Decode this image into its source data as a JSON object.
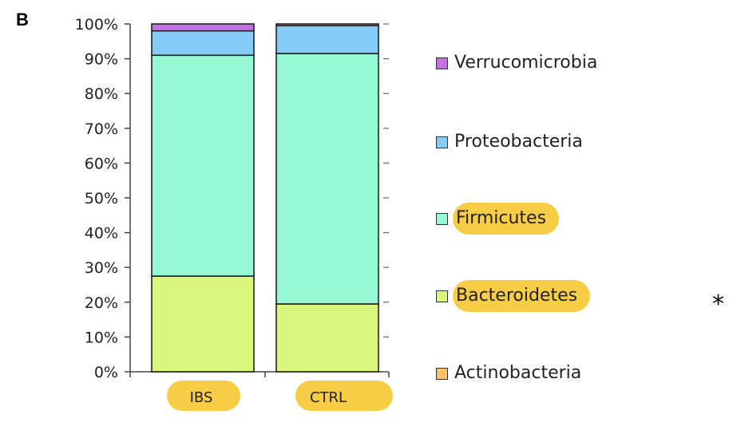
{
  "panel_label": "B",
  "annotation_mark": "*",
  "chart_data": {
    "type": "bar",
    "stacked": true,
    "categories": [
      "IBS",
      "CTRL"
    ],
    "highlighted_categories": [
      "IBS",
      "CTRL"
    ],
    "series": [
      {
        "name": "Actinobacteria",
        "values": [
          0,
          0
        ],
        "color": "#f7c46d"
      },
      {
        "name": "Bacteroidetes",
        "values": [
          27.5,
          19.5
        ],
        "color": "#d9f77c"
      },
      {
        "name": "Firmicutes",
        "values": [
          63.5,
          72.0
        ],
        "color": "#96f9d3"
      },
      {
        "name": "Proteobacteria",
        "values": [
          7.0,
          8.0
        ],
        "color": "#85cdf8"
      },
      {
        "name": "Verrucomicrobia",
        "values": [
          2.0,
          0.5
        ],
        "color": "#c570e6"
      }
    ],
    "legend_order": [
      "Verrucomicrobia",
      "Proteobacteria",
      "Firmicutes",
      "Bacteroidetes",
      "Actinobacteria"
    ],
    "highlighted_series": [
      "Firmicutes",
      "Bacteroidetes"
    ],
    "y_ticks": [
      "0%",
      "10%",
      "20%",
      "30%",
      "40%",
      "50%",
      "60%",
      "70%",
      "80%",
      "90%",
      "100%"
    ],
    "ylim": [
      0,
      100
    ],
    "legend_position": "right",
    "grid": false,
    "highlight_color": "#f8cd46"
  }
}
